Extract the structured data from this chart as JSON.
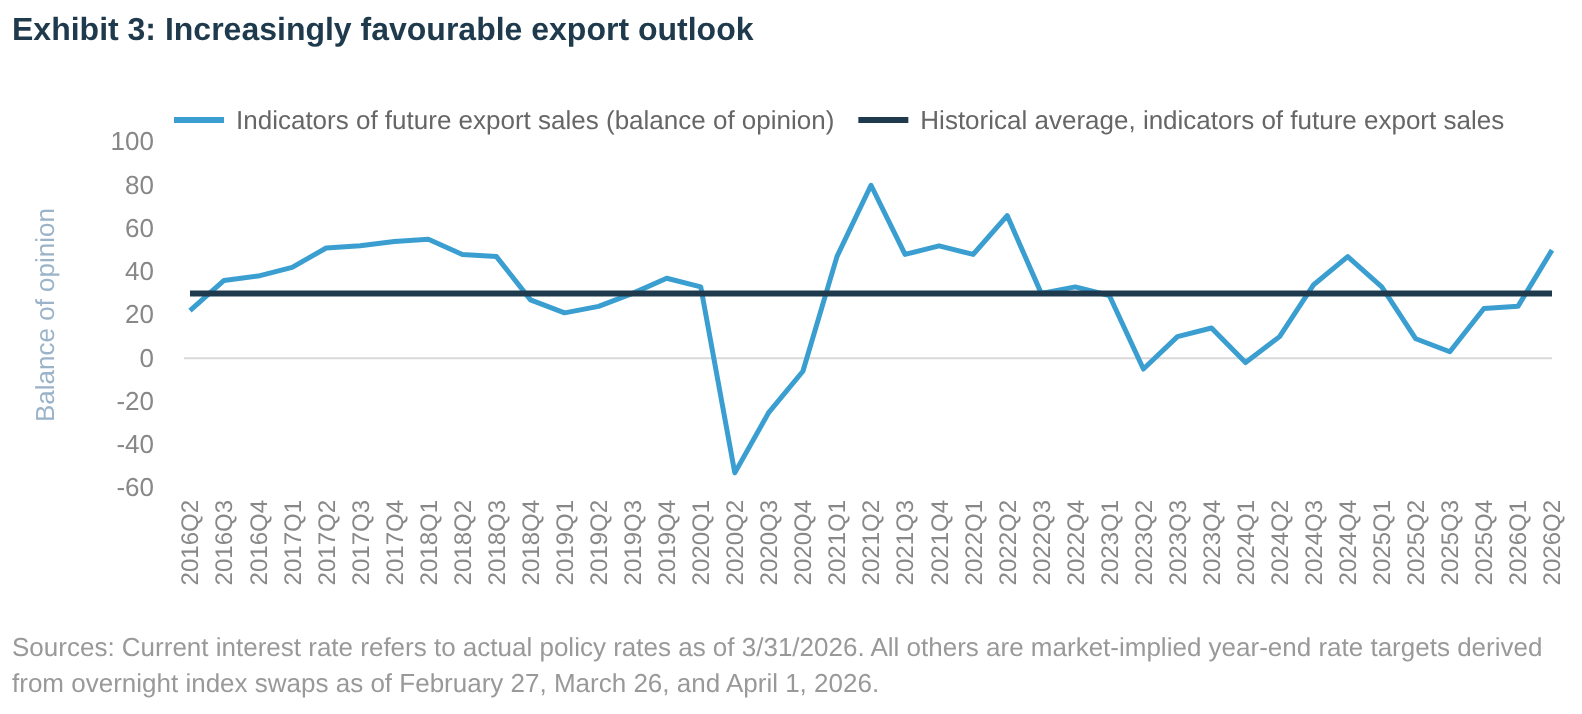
{
  "chart_data": {
    "type": "line",
    "title": "Exhibit 3: Increasingly favourable export outlook",
    "ylabel": "Balance of opinion",
    "categories": [
      "2016Q2",
      "2016Q3",
      "2016Q4",
      "2017Q1",
      "2017Q2",
      "2017Q3",
      "2017Q4",
      "2018Q1",
      "2018Q2",
      "2018Q3",
      "2018Q4",
      "2019Q1",
      "2019Q2",
      "2019Q3",
      "2019Q4",
      "2020Q1",
      "2020Q2",
      "2020Q3",
      "2020Q4",
      "2021Q1",
      "2021Q2",
      "2021Q3",
      "2021Q4",
      "2022Q1",
      "2022Q2",
      "2022Q3",
      "2022Q4",
      "2023Q1",
      "2023Q2",
      "2023Q3",
      "2023Q4",
      "2024Q1",
      "2024Q2",
      "2024Q3",
      "2024Q4",
      "2025Q1",
      "2025Q2",
      "2025Q3",
      "2025Q4",
      "2026Q1",
      "2026Q2"
    ],
    "series": [
      {
        "name": "Indicators of future export sales (balance of opinion)",
        "color": "#3a9fd0",
        "values": [
          22,
          36,
          38,
          42,
          51,
          52,
          54,
          55,
          48,
          47,
          27,
          21,
          24,
          30,
          37,
          33,
          -53,
          -25,
          -6,
          47,
          80,
          48,
          52,
          48,
          66,
          30,
          33,
          29,
          -5,
          10,
          14,
          -2,
          10,
          34,
          47,
          33,
          9,
          3,
          23,
          24,
          50
        ]
      },
      {
        "name": "Historical average, indicators of future export sales",
        "color": "#1e3a4c",
        "values": [
          30,
          30,
          30,
          30,
          30,
          30,
          30,
          30,
          30,
          30,
          30,
          30,
          30,
          30,
          30,
          30,
          30,
          30,
          30,
          30,
          30,
          30,
          30,
          30,
          30,
          30,
          30,
          30,
          30,
          30,
          30,
          30,
          30,
          30,
          30,
          30,
          30,
          30,
          30,
          30,
          30
        ]
      }
    ],
    "ylim": [
      -60,
      100
    ],
    "yticks": [
      -60,
      -40,
      -20,
      0,
      20,
      40,
      60,
      80,
      100
    ],
    "grid": false,
    "ref_lines": [
      {
        "axis": "y",
        "value": 0,
        "color": "#d9d9d9"
      }
    ],
    "legend": "top",
    "marker": "none",
    "line_style": "solid",
    "annotations": [
      "Sources: Current interest rate refers to actual policy rates as of 3/31/2026. All others are market-implied year-end rate targets derived from overnight index swaps as of February 27, March 26, and April 1, 2026."
    ]
  }
}
